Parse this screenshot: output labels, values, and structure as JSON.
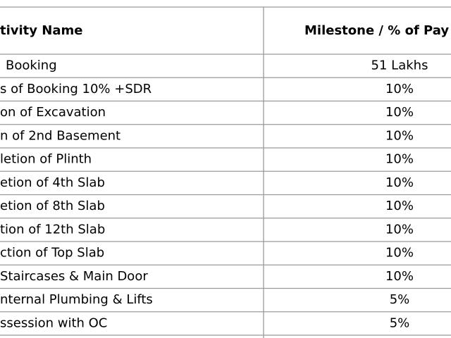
{
  "table": {
    "header": [
      "tivity Name",
      "Milestone / % of Pay"
    ],
    "rows": [
      [
        "Booking",
        "51 Lakhs"
      ],
      [
        "s of Booking 10% +SDR",
        "10%"
      ],
      [
        "on of Excavation",
        "10%"
      ],
      [
        "n of 2nd Basement",
        "10%"
      ],
      [
        "letion of Plinth",
        "10%"
      ],
      [
        "etion of 4th Slab",
        "10%"
      ],
      [
        "etion of 8th Slab",
        "10%"
      ],
      [
        "tion of 12th Slab",
        "10%"
      ],
      [
        "ction of Top Slab",
        "10%"
      ],
      [
        "Staircases & Main Door",
        "10%"
      ],
      [
        "nternal Plumbing & Lifts",
        "5%"
      ],
      [
        "ssession with OC",
        "5%"
      ]
    ]
  }
}
